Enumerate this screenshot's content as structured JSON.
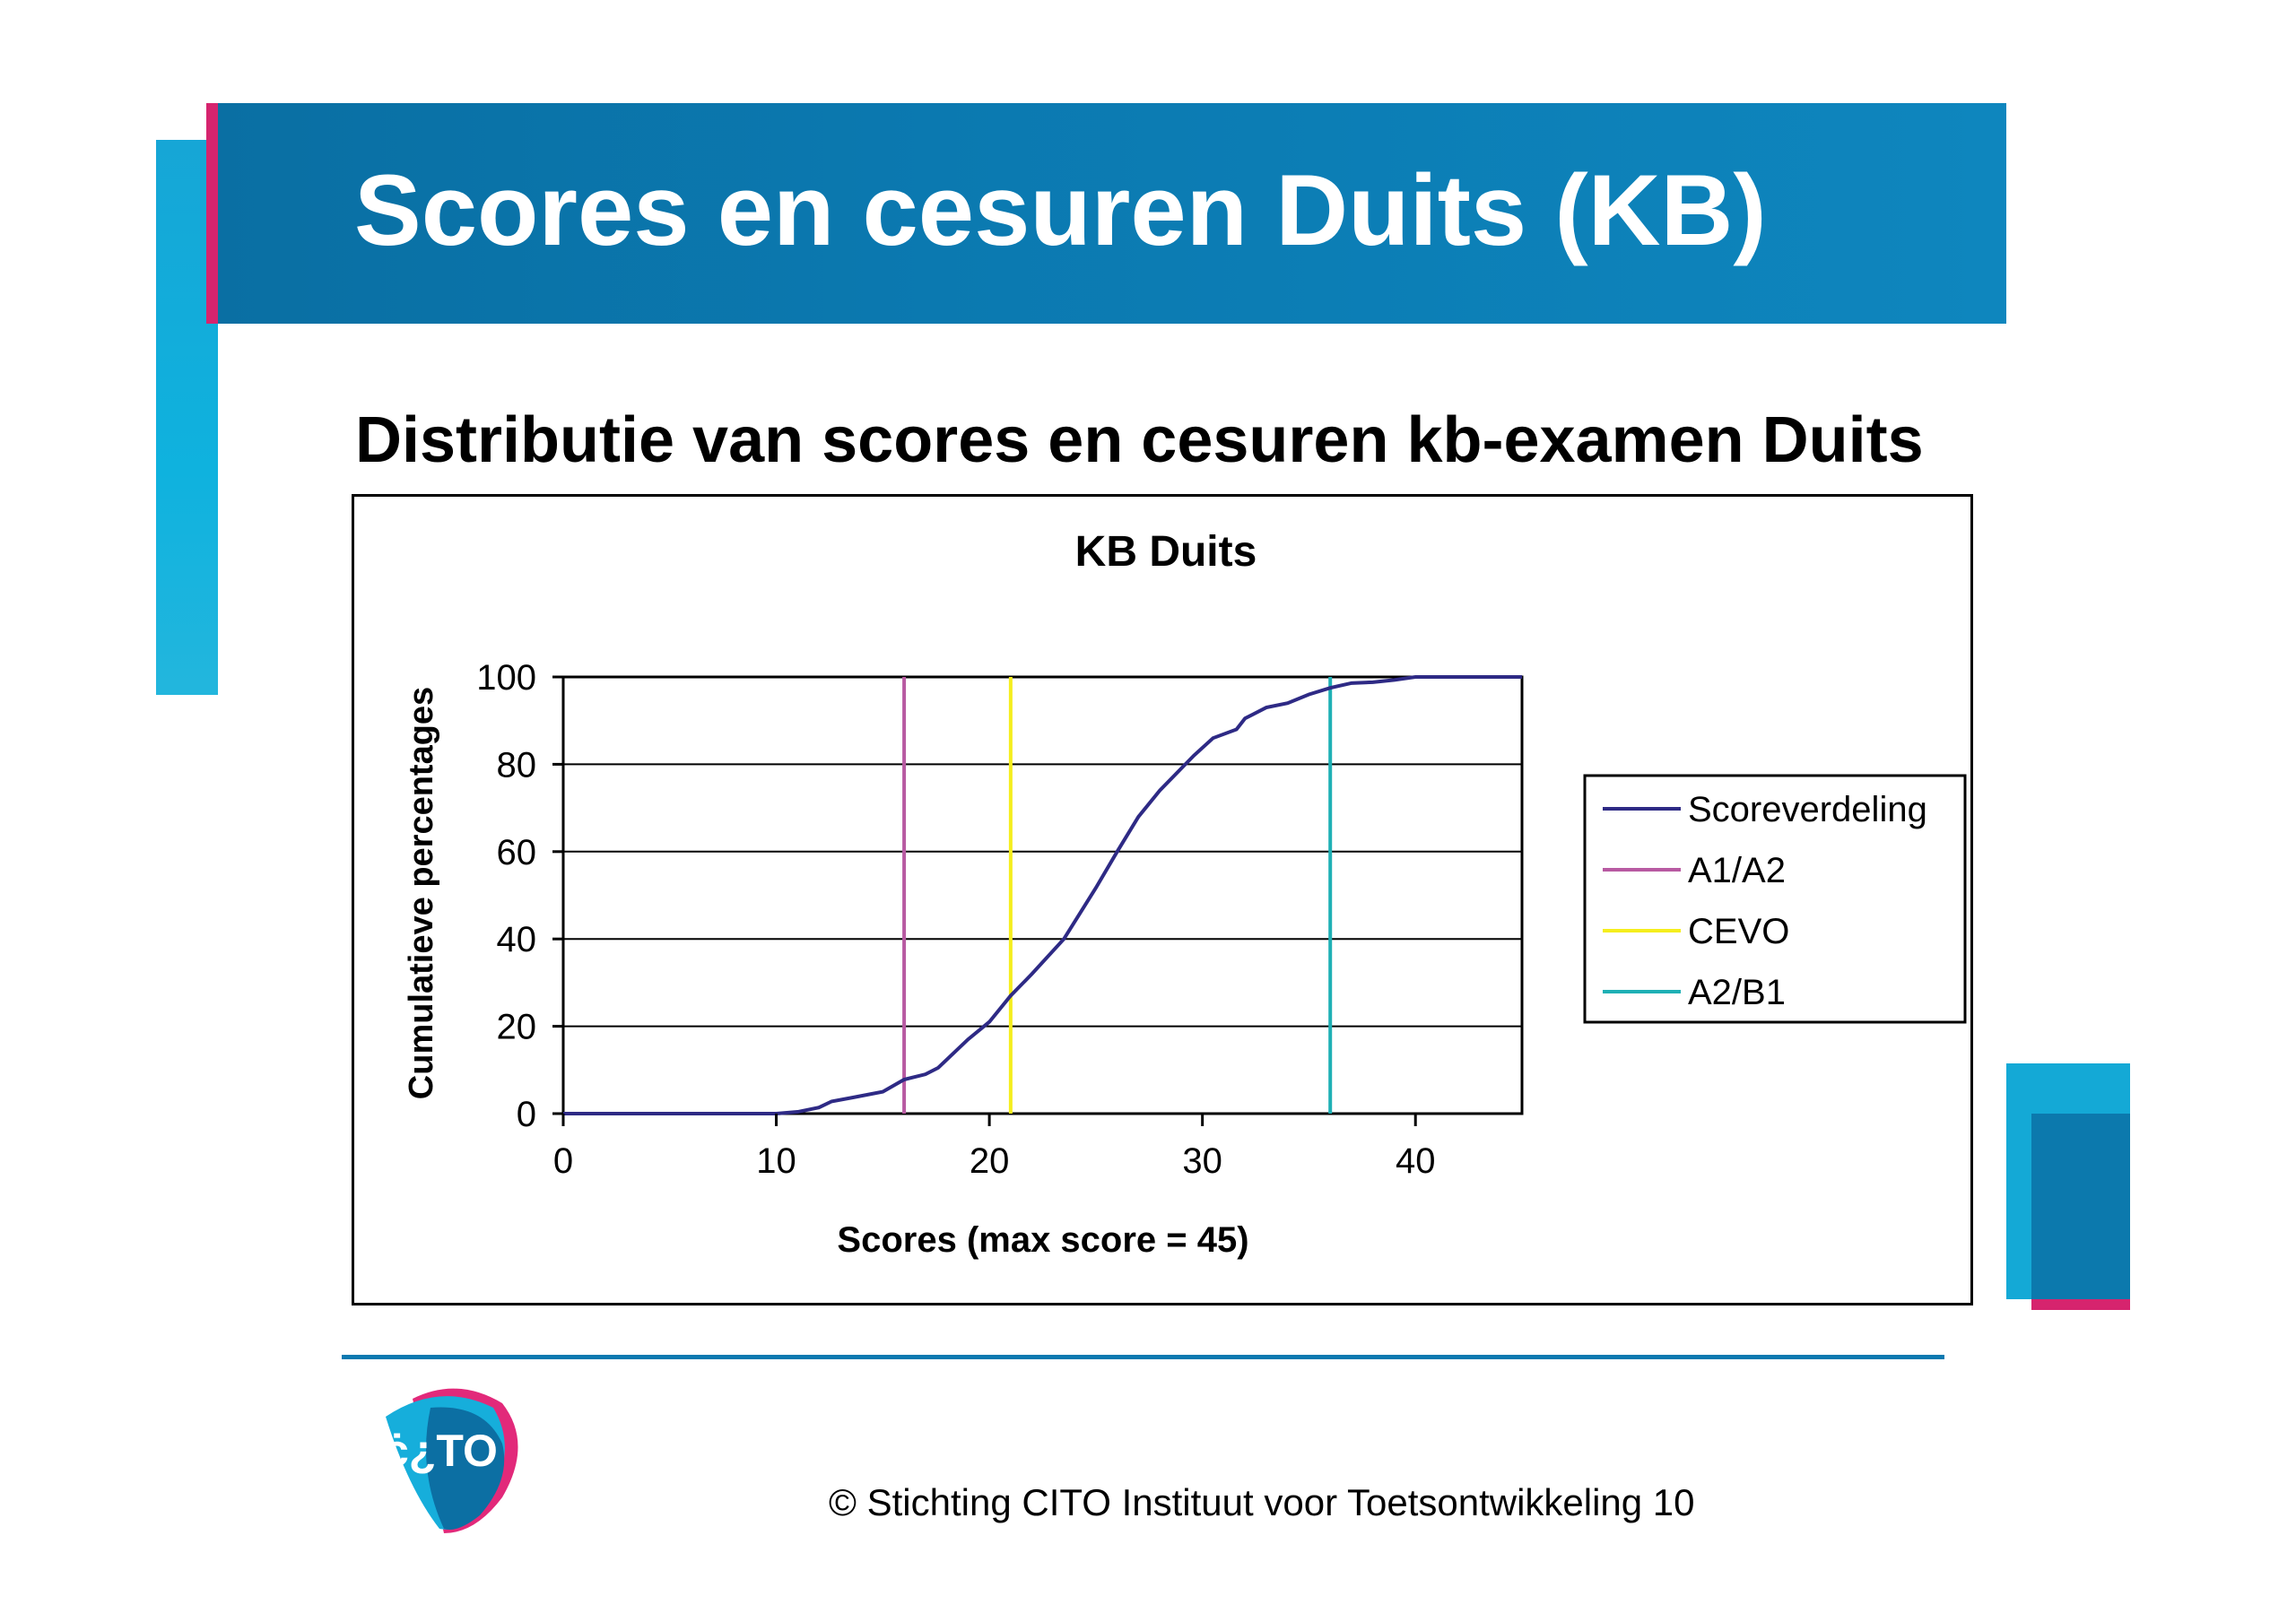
{
  "slide": {
    "title": "Scores en cesuren Duits (KB)",
    "subtitle": "Distributie van scores en cesuren kb-examen Duits",
    "footer": "© Stichting CITO Instituut voor Toetsontwikkeling 10",
    "logo_text": "CITO",
    "colors": {
      "header": "#0b79b0",
      "accent_pink": "#d6246e",
      "accent_cyan": "#14a9d6"
    }
  },
  "chart_data": {
    "type": "line",
    "title": "KB Duits",
    "xlabel": "Scores (max score =  45)",
    "ylabel": "Cumulatieve percentages",
    "xlim": [
      0,
      45
    ],
    "ylim": [
      0,
      100
    ],
    "xticks": [
      "0",
      "10",
      "20",
      "30",
      "40"
    ],
    "yticks": [
      "0",
      "20",
      "40",
      "60",
      "80",
      "100"
    ],
    "grid": "horizontal",
    "legend_position": "right",
    "series": [
      {
        "name": "Scoreverdeling",
        "color": "#2e2a85",
        "x": [
          0,
          10,
          11,
          12,
          12.6,
          13.6,
          15,
          16,
          17,
          17.6,
          19,
          20,
          21,
          22,
          23.5,
          25,
          26,
          27,
          28,
          29.6,
          30.5,
          31.6,
          32,
          33,
          34,
          35,
          36,
          37,
          38,
          39,
          40,
          45
        ],
        "y": [
          0,
          0,
          0.4,
          1.4,
          2.8,
          3.7,
          5,
          7.8,
          9,
          10.5,
          17,
          21,
          27,
          32,
          40,
          51.7,
          60,
          68,
          74,
          82,
          86,
          88,
          90.5,
          93,
          94,
          96,
          97.5,
          98.6,
          98.8,
          99.3,
          100,
          100
        ]
      }
    ],
    "cutoffs": [
      {
        "name": "A1/A2",
        "x": 16,
        "color": "#b85aa2"
      },
      {
        "name": "CEVO",
        "x": 21,
        "color": "#f5ee1e"
      },
      {
        "name": "A2/B1",
        "x": 36,
        "color": "#1fb0b5"
      }
    ]
  }
}
